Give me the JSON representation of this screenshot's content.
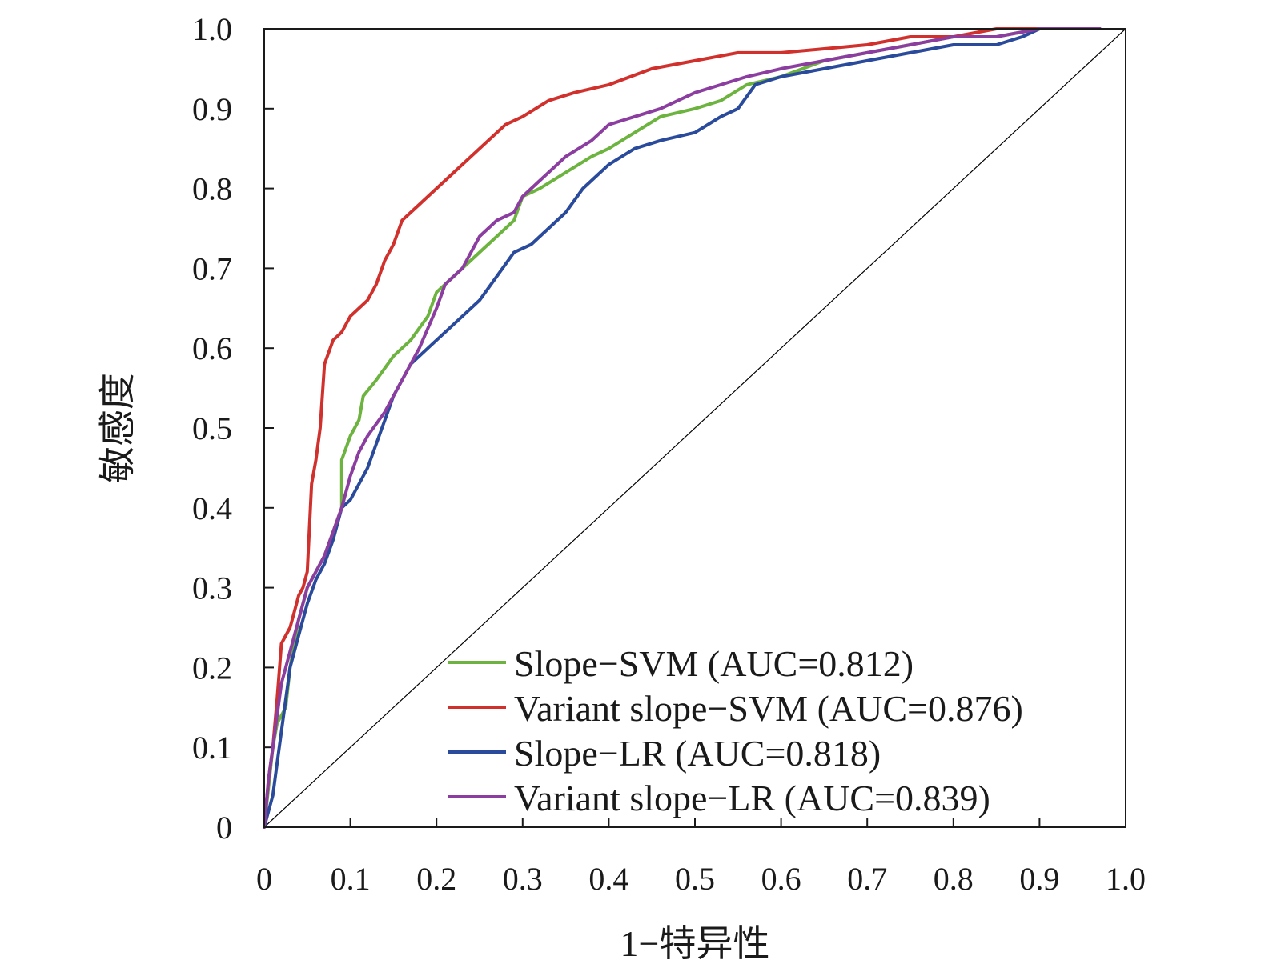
{
  "chart_data": {
    "type": "line",
    "title": "",
    "xlabel": "1−特异性",
    "ylabel": "敏感度",
    "xlim": [
      0,
      1
    ],
    "ylim": [
      0,
      1
    ],
    "x_ticks": [
      "0",
      "0.1",
      "0.2",
      "0.3",
      "0.4",
      "0.5",
      "0.6",
      "0.7",
      "0.8",
      "0.9",
      "1.0"
    ],
    "y_ticks": [
      "0",
      "0.1",
      "0.2",
      "0.3",
      "0.4",
      "0.5",
      "0.6",
      "0.7",
      "0.8",
      "0.9",
      "1.0"
    ],
    "grid": false,
    "legend_position": "bottom-right",
    "reference_line": {
      "x": [
        0,
        1
      ],
      "y": [
        0,
        1
      ],
      "color": "#000000"
    },
    "series": [
      {
        "name": "Slope−SVM (AUC=0.812)",
        "color": "#6db33f",
        "x": [
          0,
          0.005,
          0.01,
          0.015,
          0.02,
          0.025,
          0.03,
          0.035,
          0.04,
          0.05,
          0.06,
          0.07,
          0.08,
          0.09,
          0.09,
          0.1,
          0.11,
          0.115,
          0.13,
          0.15,
          0.17,
          0.19,
          0.2,
          0.21,
          0.23,
          0.25,
          0.27,
          0.29,
          0.3,
          0.32,
          0.35,
          0.38,
          0.4,
          0.43,
          0.46,
          0.5,
          0.53,
          0.56,
          0.6,
          0.65,
          0.7,
          0.75,
          0.8,
          0.85,
          0.9,
          0.95,
          0.97
        ],
        "y": [
          0,
          0.05,
          0.1,
          0.13,
          0.14,
          0.15,
          0.2,
          0.23,
          0.26,
          0.3,
          0.32,
          0.34,
          0.37,
          0.4,
          0.46,
          0.49,
          0.51,
          0.54,
          0.56,
          0.59,
          0.61,
          0.64,
          0.67,
          0.68,
          0.7,
          0.72,
          0.74,
          0.76,
          0.79,
          0.8,
          0.82,
          0.84,
          0.85,
          0.87,
          0.89,
          0.9,
          0.91,
          0.93,
          0.94,
          0.96,
          0.97,
          0.98,
          0.99,
          0.99,
          1.0,
          1.0,
          1.0
        ]
      },
      {
        "name": "Variant slope−SVM (AUC=0.876)",
        "color": "#d0312d",
        "x": [
          0,
          0.005,
          0.01,
          0.015,
          0.02,
          0.025,
          0.03,
          0.035,
          0.04,
          0.045,
          0.05,
          0.055,
          0.06,
          0.065,
          0.07,
          0.08,
          0.09,
          0.1,
          0.12,
          0.13,
          0.14,
          0.15,
          0.16,
          0.18,
          0.2,
          0.22,
          0.24,
          0.26,
          0.28,
          0.3,
          0.33,
          0.36,
          0.4,
          0.45,
          0.5,
          0.55,
          0.6,
          0.65,
          0.7,
          0.75,
          0.8,
          0.85,
          0.9,
          0.95,
          0.97
        ],
        "y": [
          0,
          0.06,
          0.1,
          0.16,
          0.23,
          0.24,
          0.25,
          0.27,
          0.29,
          0.3,
          0.32,
          0.43,
          0.46,
          0.5,
          0.58,
          0.61,
          0.62,
          0.64,
          0.66,
          0.68,
          0.71,
          0.73,
          0.76,
          0.78,
          0.8,
          0.82,
          0.84,
          0.86,
          0.88,
          0.89,
          0.91,
          0.92,
          0.93,
          0.95,
          0.96,
          0.97,
          0.97,
          0.975,
          0.98,
          0.99,
          0.99,
          1.0,
          1.0,
          1.0,
          1.0
        ]
      },
      {
        "name": "Slope−LR (AUC=0.818)",
        "color": "#2a4a9b",
        "x": [
          0,
          0.005,
          0.01,
          0.015,
          0.02,
          0.025,
          0.03,
          0.04,
          0.05,
          0.06,
          0.07,
          0.08,
          0.09,
          0.1,
          0.11,
          0.12,
          0.13,
          0.15,
          0.17,
          0.19,
          0.21,
          0.23,
          0.25,
          0.27,
          0.29,
          0.31,
          0.33,
          0.35,
          0.37,
          0.4,
          0.43,
          0.46,
          0.5,
          0.53,
          0.55,
          0.57,
          0.6,
          0.65,
          0.7,
          0.75,
          0.8,
          0.85,
          0.88,
          0.9,
          0.95,
          0.97
        ],
        "y": [
          0,
          0.02,
          0.04,
          0.08,
          0.12,
          0.16,
          0.2,
          0.24,
          0.28,
          0.31,
          0.33,
          0.36,
          0.4,
          0.41,
          0.43,
          0.45,
          0.48,
          0.54,
          0.58,
          0.6,
          0.62,
          0.64,
          0.66,
          0.69,
          0.72,
          0.73,
          0.75,
          0.77,
          0.8,
          0.83,
          0.85,
          0.86,
          0.87,
          0.89,
          0.9,
          0.93,
          0.94,
          0.95,
          0.96,
          0.97,
          0.98,
          0.98,
          0.99,
          1.0,
          1.0,
          1.0
        ]
      },
      {
        "name": "Variant slope−LR (AUC=0.839)",
        "color": "#8b3ea0",
        "x": [
          0,
          0.005,
          0.01,
          0.015,
          0.02,
          0.03,
          0.04,
          0.05,
          0.06,
          0.07,
          0.08,
          0.09,
          0.1,
          0.11,
          0.12,
          0.14,
          0.16,
          0.18,
          0.2,
          0.21,
          0.23,
          0.25,
          0.27,
          0.29,
          0.3,
          0.32,
          0.35,
          0.38,
          0.4,
          0.43,
          0.46,
          0.5,
          0.53,
          0.56,
          0.6,
          0.65,
          0.7,
          0.75,
          0.8,
          0.85,
          0.9,
          0.95,
          0.97
        ],
        "y": [
          0,
          0.06,
          0.1,
          0.14,
          0.18,
          0.22,
          0.26,
          0.3,
          0.32,
          0.34,
          0.37,
          0.4,
          0.44,
          0.47,
          0.49,
          0.52,
          0.56,
          0.6,
          0.65,
          0.68,
          0.7,
          0.74,
          0.76,
          0.77,
          0.79,
          0.81,
          0.84,
          0.86,
          0.88,
          0.89,
          0.9,
          0.92,
          0.93,
          0.94,
          0.95,
          0.96,
          0.97,
          0.98,
          0.99,
          0.99,
          1.0,
          1.0,
          1.0
        ]
      }
    ]
  }
}
